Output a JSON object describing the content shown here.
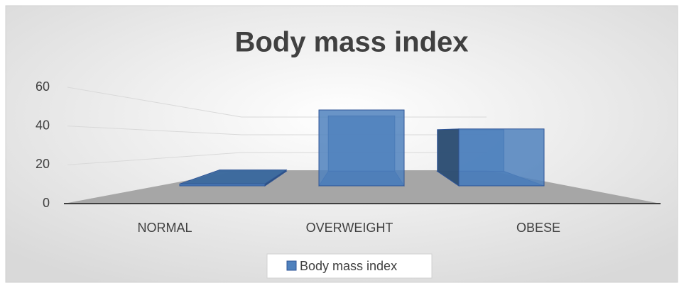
{
  "chart_data": {
    "type": "bar3d",
    "title": "Body mass index",
    "categories": [
      "NORMAL",
      "OVERWEIGHT",
      "OBESE"
    ],
    "series": [
      {
        "name": "Body mass index",
        "color": "#4f81bd",
        "values": [
          1,
          40,
          30
        ]
      }
    ],
    "ylim": [
      0,
      60
    ],
    "yticks": [
      0,
      20,
      40,
      60
    ],
    "grid": true
  }
}
